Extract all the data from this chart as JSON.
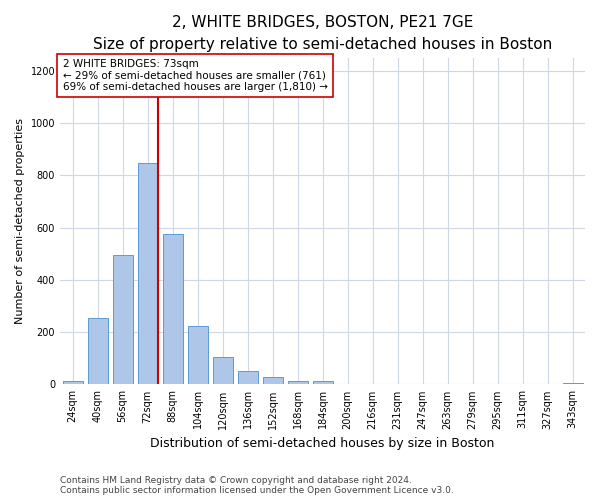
{
  "title": "2, WHITE BRIDGES, BOSTON, PE21 7GE",
  "subtitle": "Size of property relative to semi-detached houses in Boston",
  "xlabel": "Distribution of semi-detached houses by size in Boston",
  "ylabel": "Number of semi-detached properties",
  "categories": [
    "24sqm",
    "40sqm",
    "56sqm",
    "72sqm",
    "88sqm",
    "104sqm",
    "120sqm",
    "136sqm",
    "152sqm",
    "168sqm",
    "184sqm",
    "200sqm",
    "216sqm",
    "231sqm",
    "247sqm",
    "263sqm",
    "279sqm",
    "295sqm",
    "311sqm",
    "327sqm",
    "343sqm"
  ],
  "values": [
    15,
    255,
    495,
    848,
    575,
    225,
    105,
    50,
    30,
    15,
    15,
    0,
    0,
    0,
    0,
    0,
    0,
    0,
    0,
    0,
    5
  ],
  "bar_color": "#aec6e8",
  "bar_edge_color": "#5b9bd5",
  "marker_bin_index": 3,
  "marker_color": "#cc0000",
  "annotation_text": "2 WHITE BRIDGES: 73sqm\n← 29% of semi-detached houses are smaller (761)\n69% of semi-detached houses are larger (1,810) →",
  "annotation_box_color": "#ffffff",
  "annotation_box_edge": "#cc0000",
  "ylim": [
    0,
    1250
  ],
  "yticks": [
    0,
    200,
    400,
    600,
    800,
    1000,
    1200
  ],
  "footer": "Contains HM Land Registry data © Crown copyright and database right 2024.\nContains public sector information licensed under the Open Government Licence v3.0.",
  "title_fontsize": 11,
  "subtitle_fontsize": 9,
  "xlabel_fontsize": 9,
  "ylabel_fontsize": 8,
  "tick_fontsize": 7,
  "footer_fontsize": 6.5,
  "bg_color": "#ffffff",
  "grid_color": "#d0d8e8"
}
